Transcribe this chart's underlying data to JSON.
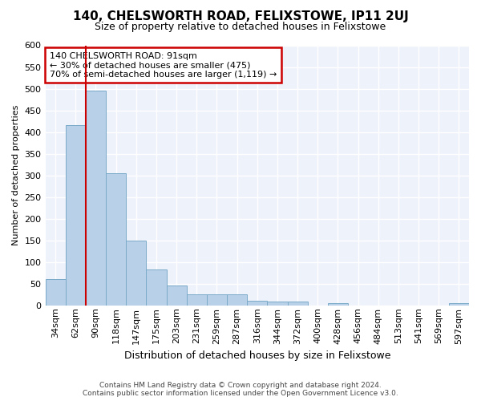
{
  "title": "140, CHELSWORTH ROAD, FELIXSTOWE, IP11 2UJ",
  "subtitle": "Size of property relative to detached houses in Felixstowe",
  "xlabel": "Distribution of detached houses by size in Felixstowe",
  "ylabel": "Number of detached properties",
  "categories": [
    "34sqm",
    "62sqm",
    "90sqm",
    "118sqm",
    "147sqm",
    "175sqm",
    "203sqm",
    "231sqm",
    "259sqm",
    "287sqm",
    "316sqm",
    "344sqm",
    "372sqm",
    "400sqm",
    "428sqm",
    "456sqm",
    "484sqm",
    "513sqm",
    "541sqm",
    "569sqm",
    "597sqm"
  ],
  "values": [
    60,
    415,
    495,
    305,
    150,
    82,
    45,
    25,
    25,
    25,
    10,
    8,
    8,
    0,
    5,
    0,
    0,
    0,
    0,
    0,
    5
  ],
  "bar_color": "#b8d0e8",
  "bar_edge_color": "#7aaac8",
  "highlight_index": 2,
  "highlight_line_color": "#cc0000",
  "ylim": [
    0,
    600
  ],
  "yticks": [
    0,
    50,
    100,
    150,
    200,
    250,
    300,
    350,
    400,
    450,
    500,
    550,
    600
  ],
  "annotation_box_text": "140 CHELSWORTH ROAD: 91sqm\n← 30% of detached houses are smaller (475)\n70% of semi-detached houses are larger (1,119) →",
  "annotation_box_color": "#cc0000",
  "bg_color": "#eef2fb",
  "grid_color": "#ffffff",
  "footer_line1": "Contains HM Land Registry data © Crown copyright and database right 2024.",
  "footer_line2": "Contains public sector information licensed under the Open Government Licence v3.0.",
  "title_fontsize": 11,
  "subtitle_fontsize": 9,
  "xlabel_fontsize": 9,
  "ylabel_fontsize": 8,
  "tick_fontsize": 8,
  "ann_fontsize": 8,
  "footer_fontsize": 6.5
}
